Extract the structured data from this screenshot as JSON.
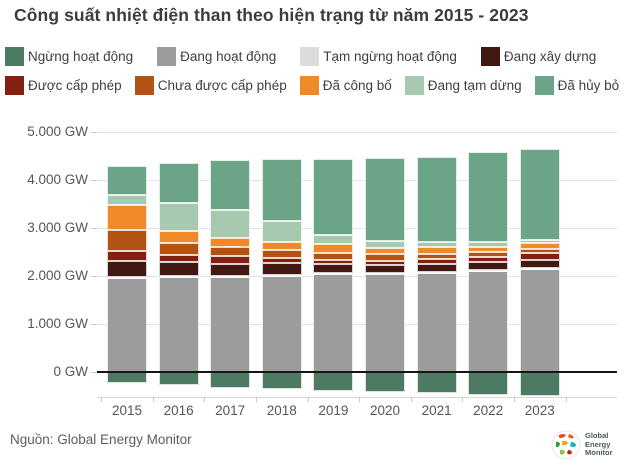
{
  "title": "Công suất nhiệt điện than theo hiện trạng từ năm 2015 - 2023",
  "source": "Nguồn: Global Energy Monitor",
  "logo": {
    "lines": [
      "Global",
      "Energy",
      "Monitor"
    ]
  },
  "legend": {
    "rows": [
      [
        "Ngừng hoạt động",
        "Đang hoạt động",
        "Tạm ngừng hoạt động",
        "Đang xây dựng"
      ],
      [
        "Được cấp phép",
        "Chưa được cấp phép",
        "Đã công bố",
        "Đang tạm dừng",
        "Đã hủy bỏ"
      ]
    ]
  },
  "chart_data": {
    "type": "bar",
    "stacked": true,
    "title": "Công suất nhiệt điện than theo hiện trạng từ năm 2015 - 2023",
    "xlabel": "",
    "ylabel": "GW",
    "unit": "GW",
    "grid": true,
    "legend_position": "top",
    "ylim": [
      -600,
      5000
    ],
    "yticks": [
      0,
      1000,
      2000,
      3000,
      4000,
      5000
    ],
    "ytick_labels": [
      "0 GW",
      "1.000 GW",
      "2.000 GW",
      "3.000 GW",
      "4.000 GW",
      "5.000 GW"
    ],
    "categories": [
      "2015",
      "2016",
      "2017",
      "2018",
      "2019",
      "2020",
      "2021",
      "2022",
      "2023"
    ],
    "series": [
      {
        "name": "Đang hoạt động",
        "color": "#9c9c9c",
        "values": [
          1950,
          1970,
          1990,
          2010,
          2040,
          2050,
          2070,
          2110,
          2140
        ]
      },
      {
        "name": "Tạm ngừng hoạt động",
        "color": "#dcdcdc",
        "values": [
          20,
          20,
          20,
          20,
          20,
          20,
          20,
          20,
          20
        ]
      },
      {
        "name": "Đang xây dựng",
        "color": "#421912",
        "values": [
          340,
          300,
          240,
          240,
          180,
          150,
          160,
          160,
          170
        ]
      },
      {
        "name": "Được cấp phép",
        "color": "#832012",
        "values": [
          210,
          150,
          160,
          100,
          100,
          100,
          110,
          110,
          140
        ]
      },
      {
        "name": "Chưa được cấp phép",
        "color": "#b25314",
        "values": [
          440,
          250,
          190,
          180,
          140,
          130,
          100,
          90,
          90
        ]
      },
      {
        "name": "Đã công bố",
        "color": "#f08a28",
        "values": [
          510,
          250,
          190,
          160,
          180,
          130,
          140,
          120,
          120
        ]
      },
      {
        "name": "Đang tạm dừng",
        "color": "#a6c9b0",
        "values": [
          220,
          580,
          580,
          440,
          200,
          140,
          100,
          100,
          80
        ]
      },
      {
        "name": "Đã hủy bỏ",
        "color": "#6ba486",
        "values": [
          600,
          840,
          1040,
          1280,
          1580,
          1730,
          1770,
          1870,
          1890
        ]
      },
      {
        "name": "Ngừng hoạt động",
        "color": "#4d7a62",
        "values": [
          -230,
          -280,
          -340,
          -360,
          -390,
          -410,
          -440,
          -480,
          -510
        ]
      }
    ]
  }
}
